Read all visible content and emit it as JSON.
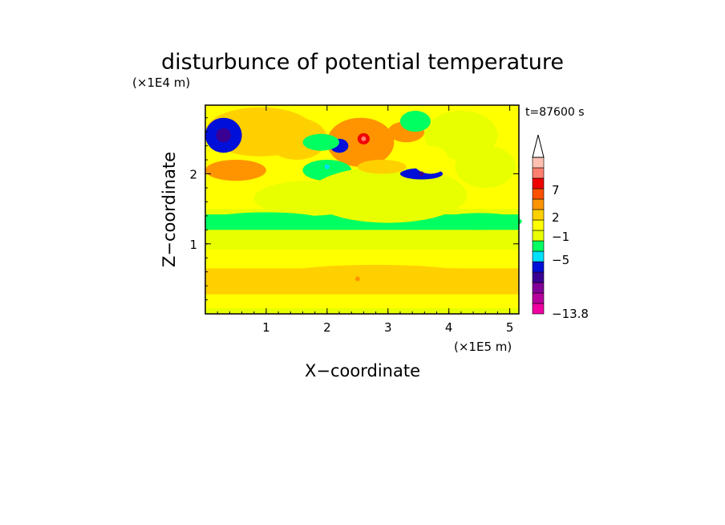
{
  "chart_data": {
    "type": "heatmap",
    "title": "disturbunce of potential temperature",
    "xlabel": "X−coordinate",
    "ylabel": "Z−coordinate",
    "x_unit": "(×1E5 m)",
    "y_unit": "(×1E4 m)",
    "time_label": "t=87600 s",
    "xlim": [
      0,
      5.15
    ],
    "ylim": [
      0,
      2.98
    ],
    "x_ticks": [
      "1",
      "2",
      "3",
      "4",
      "5"
    ],
    "y_ticks": [
      "1",
      "2"
    ],
    "colorbar": {
      "levels": [
        -13.8,
        -11,
        -9,
        -7,
        -5,
        -3,
        -1,
        0,
        1,
        2,
        3,
        5,
        7,
        9,
        11
      ],
      "labels": [
        "7",
        "2",
        "−1",
        "−5",
        "−13.8"
      ],
      "colors": [
        "#f000a0",
        "#b8009c",
        "#820098",
        "#3a0094",
        "#0010d8",
        "#00e0ff",
        "#00ff60",
        "#e8ff00",
        "#ffff00",
        "#ffd000",
        "#ff9400",
        "#ff5000",
        "#f00000",
        "#ff8070",
        "#ffc0b0"
      ],
      "extend": "max"
    },
    "features": [
      {
        "x": 2.6,
        "z": 2.5,
        "value": 9
      },
      {
        "x": 0.3,
        "z": 2.55,
        "value": -7
      },
      {
        "x": 3.55,
        "z": 2.0,
        "value": -7
      },
      {
        "x": 2.0,
        "z": 2.1,
        "value": -3
      },
      {
        "x": 4.4,
        "z": 1.3,
        "value": -1
      },
      {
        "x": 1.0,
        "z": 1.3,
        "value": -1
      },
      {
        "x": 2.8,
        "z": 1.35,
        "value": 0
      },
      {
        "x": 2.5,
        "z": 0.5,
        "value": 3
      },
      {
        "x": 0.7,
        "z": 2.0,
        "value": 3
      },
      {
        "x": 3.2,
        "z": 2.55,
        "value": 3
      }
    ]
  }
}
